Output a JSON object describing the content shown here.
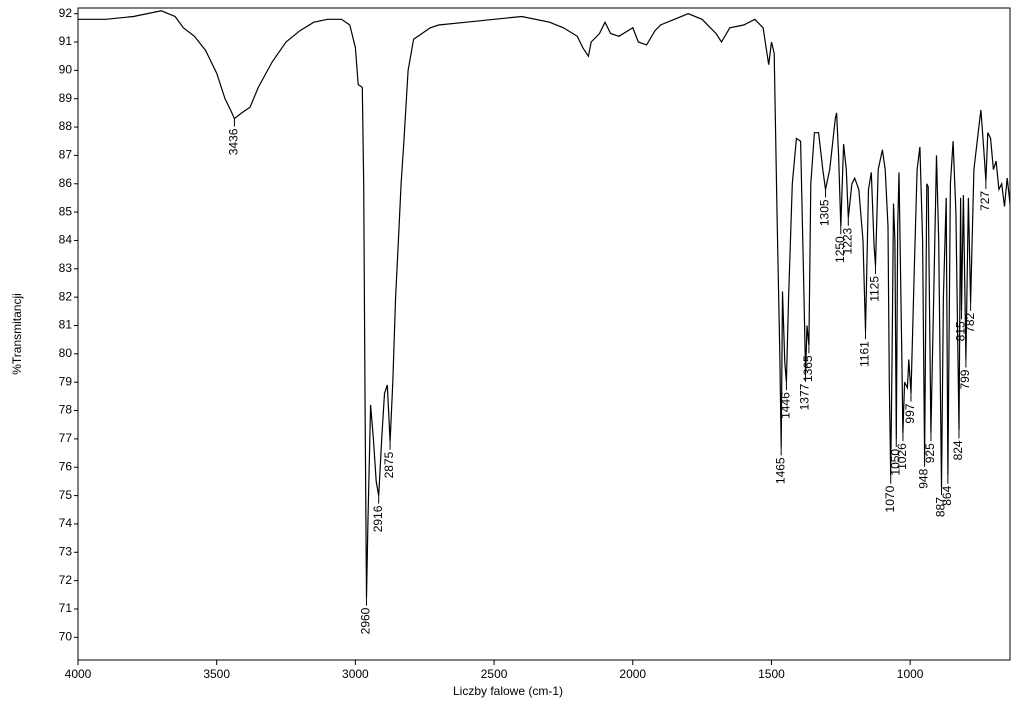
{
  "chart_data": {
    "type": "line",
    "xlabel": "Liczby falowe (cm-1)",
    "ylabel": "%Transmitancji",
    "xlim": [
      4000,
      640
    ],
    "ylim": [
      69.2,
      92.2
    ],
    "xticks": [
      4000,
      3500,
      3000,
      2500,
      2000,
      1500,
      1000
    ],
    "yticks": [
      70,
      71,
      72,
      73,
      74,
      75,
      76,
      77,
      78,
      79,
      80,
      81,
      82,
      83,
      84,
      85,
      86,
      87,
      88,
      89,
      90,
      91,
      92
    ],
    "color": "#000000",
    "x": [
      4000,
      3900,
      3800,
      3700,
      3650,
      3620,
      3580,
      3540,
      3500,
      3470,
      3450,
      3436,
      3410,
      3380,
      3350,
      3300,
      3250,
      3200,
      3150,
      3100,
      3050,
      3020,
      3000,
      2990,
      2975,
      2970,
      2965,
      2960,
      2955,
      2945,
      2935,
      2925,
      2916,
      2905,
      2895,
      2885,
      2875,
      2865,
      2855,
      2845,
      2835,
      2825,
      2810,
      2790,
      2760,
      2730,
      2700,
      2600,
      2500,
      2400,
      2300,
      2250,
      2200,
      2180,
      2160,
      2150,
      2120,
      2100,
      2080,
      2050,
      2000,
      1980,
      1950,
      1920,
      1900,
      1850,
      1800,
      1750,
      1720,
      1700,
      1680,
      1650,
      1600,
      1560,
      1530,
      1510,
      1500,
      1490,
      1480,
      1470,
      1465,
      1460,
      1452,
      1446,
      1438,
      1425,
      1410,
      1395,
      1385,
      1377,
      1372,
      1365,
      1358,
      1345,
      1330,
      1315,
      1305,
      1290,
      1270,
      1265,
      1258,
      1250,
      1240,
      1230,
      1223,
      1210,
      1200,
      1185,
      1170,
      1161,
      1150,
      1140,
      1130,
      1125,
      1115,
      1100,
      1090,
      1080,
      1075,
      1070,
      1065,
      1060,
      1055,
      1050,
      1045,
      1040,
      1030,
      1026,
      1020,
      1010,
      1005,
      997,
      985,
      975,
      965,
      955,
      948,
      940,
      935,
      925,
      915,
      905,
      897,
      887,
      880,
      870,
      864,
      855,
      845,
      835,
      824,
      818,
      815,
      808,
      799,
      790,
      782,
      770,
      750,
      745,
      735,
      727,
      720,
      710,
      700,
      690,
      680,
      670,
      660,
      650,
      640
    ],
    "values": [
      91.8,
      91.8,
      91.9,
      92.1,
      91.9,
      91.5,
      91.2,
      90.7,
      89.9,
      89.0,
      88.6,
      88.3,
      88.5,
      88.7,
      89.4,
      90.3,
      91.0,
      91.4,
      91.7,
      91.8,
      91.8,
      91.6,
      90.8,
      89.5,
      89.4,
      86,
      78,
      71.4,
      74,
      78.2,
      77,
      75.5,
      75.0,
      77,
      78.6,
      78.9,
      76.9,
      79,
      82,
      84,
      86,
      87.5,
      90,
      91.1,
      91.3,
      91.5,
      91.6,
      91.7,
      91.8,
      91.9,
      91.7,
      91.5,
      91.2,
      90.8,
      90.5,
      91.0,
      91.3,
      91.7,
      91.3,
      91.2,
      91.5,
      91.0,
      90.9,
      91.4,
      91.6,
      91.8,
      92.0,
      91.8,
      91.5,
      91.3,
      91.0,
      91.5,
      91.6,
      91.8,
      91.5,
      90.2,
      91.0,
      90.6,
      85,
      80,
      76.7,
      82.2,
      79.7,
      79.0,
      82,
      86,
      87.6,
      87.5,
      83,
      79.3,
      81,
      80.3,
      86,
      87.8,
      87.8,
      86.5,
      85.8,
      86.5,
      88.3,
      88.5,
      87,
      84.5,
      87.4,
      86.5,
      84.8,
      86.0,
      86.2,
      85.8,
      84.0,
      80.8,
      85.8,
      86.4,
      83.8,
      83.1,
      86.5,
      87.2,
      86.5,
      84.5,
      79,
      75.7,
      80,
      85.3,
      84,
      77.0,
      84.5,
      86.4,
      80,
      77.2,
      79,
      78.8,
      79.8,
      78.6,
      83,
      86.5,
      87.3,
      84,
      76.3,
      86,
      85.9,
      77.2,
      82,
      87,
      84,
      75.3,
      82,
      85.5,
      75.7,
      86,
      87.5,
      85,
      77.3,
      85.5,
      81.5,
      85.6,
      79.8,
      85.5,
      81.8,
      86.5,
      88.2,
      88.6,
      87.3,
      86.1,
      87.8,
      87.6,
      86.5,
      86.8,
      85.8,
      86.0,
      85.2,
      86.2,
      85.3
    ],
    "peaks": [
      {
        "x": 3436,
        "y": 88.3
      },
      {
        "x": 2960,
        "y": 71.4
      },
      {
        "x": 2916,
        "y": 75.0
      },
      {
        "x": 2875,
        "y": 76.9
      },
      {
        "x": 1465,
        "y": 76.7
      },
      {
        "x": 1446,
        "y": 79.0
      },
      {
        "x": 1377,
        "y": 79.3
      },
      {
        "x": 1365,
        "y": 80.3
      },
      {
        "x": 1305,
        "y": 85.8
      },
      {
        "x": 1250,
        "y": 84.5
      },
      {
        "x": 1223,
        "y": 84.8
      },
      {
        "x": 1161,
        "y": 80.8
      },
      {
        "x": 1125,
        "y": 83.1
      },
      {
        "x": 1070,
        "y": 75.7
      },
      {
        "x": 1050,
        "y": 77.0
      },
      {
        "x": 1026,
        "y": 77.2
      },
      {
        "x": 997,
        "y": 78.6
      },
      {
        "x": 948,
        "y": 76.3
      },
      {
        "x": 925,
        "y": 77.2
      },
      {
        "x": 887,
        "y": 75.3
      },
      {
        "x": 864,
        "y": 75.7
      },
      {
        "x": 824,
        "y": 77.3
      },
      {
        "x": 815,
        "y": 81.5
      },
      {
        "x": 799,
        "y": 79.8
      },
      {
        "x": 782,
        "y": 81.8
      },
      {
        "x": 727,
        "y": 86.1
      }
    ]
  }
}
